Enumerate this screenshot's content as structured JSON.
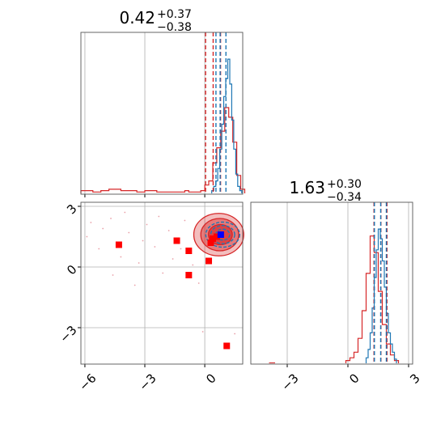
{
  "colors": {
    "red": "#d62728",
    "blue": "#1f77b4",
    "grid": "#b0b0b0",
    "axes": "#000000",
    "marker_red": "#ff0000",
    "marker_blue": "#0000ff"
  },
  "chart_data": [
    {
      "type": "histogram",
      "panel": "top-left",
      "title": {
        "value": "0.42",
        "upper": "+0.37",
        "lower": "−0.38"
      },
      "xlim": [
        -6.2,
        1.9
      ],
      "grid": true,
      "tick_values": [
        -6,
        -3,
        0
      ],
      "series": [
        {
          "color": "red",
          "x_start": -6.2,
          "bin_width": 0.2,
          "heights": [
            0.02,
            0.02,
            0.02,
            0.01,
            0.01,
            0.02,
            0.02,
            0.03,
            0.03,
            0.03,
            0.02,
            0.02,
            0.02,
            0.02,
            0.01,
            0.01,
            0.02,
            0.02,
            0.02,
            0.01,
            0.01,
            0.01,
            0.01,
            0.01,
            0.01,
            0.01,
            0.02,
            0.01,
            0.01,
            0.01,
            0.02,
            0.06,
            0.09,
            0.22,
            0.33,
            0.45,
            0.62,
            0.55,
            0.37,
            0.13,
            0.03
          ]
        },
        {
          "color": "blue",
          "x_start": 0.35,
          "bin_width": 0.1,
          "heights": [
            0.02,
            0.05,
            0.09,
            0.18,
            0.32,
            0.5,
            0.7,
            0.83,
            0.97,
            0.79,
            0.53,
            0.32,
            0.14,
            0.05,
            0.02
          ]
        }
      ],
      "quantile_lines": [
        {
          "color": "red",
          "x": 0.04
        },
        {
          "color": "red",
          "x": 0.42
        },
        {
          "color": "red",
          "x": 0.79
        },
        {
          "color": "blue",
          "x": 0.56
        },
        {
          "color": "blue",
          "x": 0.77
        },
        {
          "color": "blue",
          "x": 1.06
        }
      ]
    },
    {
      "type": "scatter-contour",
      "panel": "bottom-left",
      "xlim": [
        -6.2,
        1.9
      ],
      "ylim": [
        -4.8,
        3.2
      ],
      "grid": true,
      "x_ticks": [
        -6,
        -3,
        0
      ],
      "x_tick_labels": [
        "−6",
        "−3",
        "0"
      ],
      "y_ticks": [
        3,
        0,
        -3
      ],
      "y_tick_labels": [
        "3",
        "0",
        "−3"
      ],
      "red_markers": [
        {
          "x": -4.3,
          "y": 1.1
        },
        {
          "x": -1.4,
          "y": 1.3
        },
        {
          "x": -0.8,
          "y": 0.8
        },
        {
          "x": -0.8,
          "y": -0.4
        },
        {
          "x": 0.2,
          "y": 0.3
        },
        {
          "x": 0.3,
          "y": 1.2
        },
        {
          "x": 0.4,
          "y": 1.4
        },
        {
          "x": 0.6,
          "y": 1.5
        },
        {
          "x": 0.8,
          "y": 1.6
        },
        {
          "x": 1.1,
          "y": -3.9
        }
      ],
      "blue_markers": [
        {
          "x": 0.8,
          "y": 1.6
        }
      ],
      "red_contours": [
        {
          "cx": 0.7,
          "cy": 1.6,
          "rx": 1.25,
          "ry": 1.05,
          "fill_opacity": 0.3
        },
        {
          "cx": 0.75,
          "cy": 1.6,
          "rx": 0.95,
          "ry": 0.8,
          "fill_opacity": 0.45
        },
        {
          "cx": 0.78,
          "cy": 1.6,
          "rx": 0.6,
          "ry": 0.5,
          "fill_opacity": 0.65
        }
      ],
      "blue_contours": [
        {
          "cx": 0.9,
          "cy": 1.6,
          "rx": 0.85,
          "ry": 0.62
        },
        {
          "cx": 0.9,
          "cy": 1.6,
          "rx": 0.6,
          "ry": 0.45
        },
        {
          "cx": 0.9,
          "cy": 1.6,
          "rx": 0.35,
          "ry": 0.27
        }
      ],
      "faint_points": [
        {
          "x": -5.7,
          "y": 2.2
        },
        {
          "x": -5.1,
          "y": 1.9
        },
        {
          "x": -4.7,
          "y": 2.4
        },
        {
          "x": -4.2,
          "y": 0.5
        },
        {
          "x": -3.8,
          "y": 1.7
        },
        {
          "x": -3.3,
          "y": 0.2
        },
        {
          "x": -2.9,
          "y": 2.1
        },
        {
          "x": -2.5,
          "y": 1.0
        },
        {
          "x": -2.1,
          "y": -0.3
        },
        {
          "x": -1.8,
          "y": 1.8
        },
        {
          "x": -1.2,
          "y": 0.9
        },
        {
          "x": -0.6,
          "y": 0.1
        },
        {
          "x": -5.3,
          "y": 0.9
        },
        {
          "x": -4.6,
          "y": -0.4
        },
        {
          "x": -3.5,
          "y": -0.9
        },
        {
          "x": -3.1,
          "y": 1.3
        },
        {
          "x": -1.6,
          "y": 0.4
        },
        {
          "x": -0.3,
          "y": -0.8
        },
        {
          "x": -0.1,
          "y": -3.2
        },
        {
          "x": 1.5,
          "y": -3.3
        },
        {
          "x": -5.9,
          "y": 1.5
        },
        {
          "x": -2.3,
          "y": 2.5
        },
        {
          "x": -4.0,
          "y": 2.7
        },
        {
          "x": -1.0,
          "y": 2.3
        }
      ]
    },
    {
      "type": "histogram",
      "panel": "bottom-right",
      "title": {
        "value": "1.63",
        "upper": "+0.30",
        "lower": "−0.34"
      },
      "xlim": [
        -4.8,
        3.2
      ],
      "grid": true,
      "x_ticks": [
        -3,
        0,
        3
      ],
      "x_tick_labels": [
        "−3",
        "0",
        "3"
      ],
      "series": [
        {
          "color": "red",
          "x_start": -0.1,
          "bin_width": 0.2,
          "heights": [
            0.02,
            0.04,
            0.08,
            0.18,
            0.38,
            0.65,
            0.92,
            0.8,
            0.52,
            0.28,
            0.14,
            0.06,
            0.02
          ]
        },
        {
          "color": "blue",
          "x_start": 0.9,
          "bin_width": 0.1,
          "heights": [
            0.04,
            0.1,
            0.22,
            0.4,
            0.62,
            0.82,
            0.97,
            0.9,
            0.74,
            0.55,
            0.36,
            0.22,
            0.14,
            0.08,
            0.03
          ]
        }
      ],
      "quantile_lines": [
        {
          "color": "red",
          "x": 1.29
        },
        {
          "color": "red",
          "x": 1.63
        },
        {
          "color": "red",
          "x": 1.93
        },
        {
          "color": "blue",
          "x": 1.31
        },
        {
          "color": "blue",
          "x": 1.62
        },
        {
          "color": "blue",
          "x": 1.9
        }
      ]
    }
  ]
}
